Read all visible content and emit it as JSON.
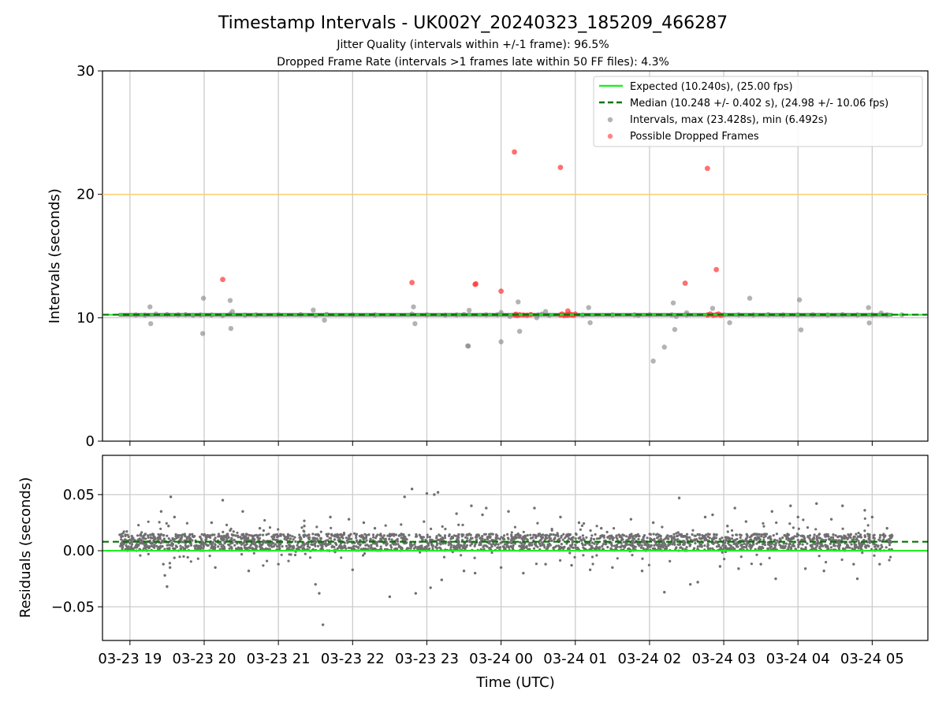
{
  "chart_data": [
    {
      "type": "scatter",
      "title": "Timestamp Intervals - UK002Y_20240323_185209_466287",
      "subtitle_1": "Jitter Quality (intervals within +/-1 frame): 96.5%",
      "subtitle_2": "Dropped Frame Rate (intervals >1 frames late within 50 FF files): 4.3%",
      "xlabel": "",
      "ylabel": "Intervals (seconds)",
      "ylim": [
        0,
        30
      ],
      "yticks": [
        0,
        10,
        20,
        30
      ],
      "xlim_hours": [
        18.63,
        29.75
      ],
      "xtick_hours": [
        19,
        20,
        21,
        22,
        23,
        24,
        25,
        26,
        27,
        28,
        29
      ],
      "grid": true,
      "legend_position": "top-right",
      "legend": [
        {
          "label": "Expected (10.240s), (25.00 fps)",
          "kind": "solid-line",
          "color": "#22ee22"
        },
        {
          "label": "Median (10.248 +/- 0.402 s), (24.98 +/- 10.06 fps)",
          "kind": "dashed-line",
          "color": "#007700"
        },
        {
          "label": "Intervals, max (23.428s), min (6.492s)",
          "kind": "marker",
          "color": "#808080"
        },
        {
          "label": "Possible Dropped Frames",
          "kind": "marker",
          "color": "#ff3333"
        }
      ],
      "expected_interval": 10.24,
      "median_interval": 10.248,
      "warning_line": 20.0,
      "series": [
        {
          "name": "Intervals",
          "x_hours": [
            19.08,
            19.2,
            19.35,
            19.5,
            19.65,
            19.75,
            19.85,
            19.95,
            20.1,
            20.25,
            20.35,
            20.55,
            20.7,
            21.0,
            21.3,
            21.5,
            21.65,
            22.0,
            22.3,
            22.8,
            23.0,
            23.25,
            23.4,
            23.5,
            23.8,
            23.95,
            24.2,
            24.5,
            24.55,
            24.85,
            24.95,
            25.1,
            25.5,
            25.8,
            26.0,
            26.3,
            26.5,
            26.8,
            27.0,
            27.2,
            27.4,
            27.6,
            27.8,
            28.0,
            28.2,
            28.4,
            28.6,
            28.8,
            29.0,
            29.2,
            29.4,
            19.27,
            19.28,
            20.35,
            20.36,
            20.38,
            19.99,
            19.98,
            21.47,
            21.62,
            22.82,
            22.84,
            23.56,
            23.55,
            23.57,
            24.0,
            24.0,
            24.23,
            24.25,
            24.6,
            24.65,
            25.18,
            25.2,
            26.32,
            26.34,
            26.36,
            26.5,
            26.85,
            27.08,
            27.35,
            28.02,
            28.04,
            28.95,
            28.96,
            29.12,
            24.48,
            26.2,
            26.05,
            25.85,
            24.12
          ],
          "y": [
            10.24,
            10.22,
            10.3,
            10.27,
            10.25,
            10.26,
            10.2,
            10.24,
            10.23,
            10.18,
            10.3,
            10.22,
            10.24,
            10.25,
            10.26,
            10.2,
            10.28,
            10.24,
            10.24,
            10.3,
            10.24,
            10.22,
            10.24,
            10.27,
            10.25,
            10.25,
            10.24,
            10.24,
            10.3,
            10.24,
            10.24,
            10.22,
            10.24,
            10.24,
            10.25,
            10.24,
            10.24,
            10.26,
            10.24,
            10.25,
            10.23,
            10.26,
            10.24,
            10.24,
            10.25,
            10.23,
            10.26,
            10.24,
            10.24,
            10.25,
            10.24,
            10.88,
            9.52,
            11.4,
            9.13,
            10.5,
            11.58,
            8.72,
            10.62,
            9.8,
            10.88,
            9.52,
            7.7,
            7.72,
            10.6,
            8.05,
            10.42,
            11.28,
            8.9,
            10.5,
            10.2,
            10.82,
            9.6,
            11.2,
            9.05,
            10.1,
            10.4,
            10.76,
            9.6,
            11.58,
            11.45,
            9.02,
            10.82,
            9.58,
            10.38,
            10.0,
            7.62,
            6.49,
            10.2,
            10.1
          ]
        },
        {
          "name": "Possible Dropped Frames",
          "x_hours": [
            20.25,
            22.8,
            23.65,
            23.66,
            24.0,
            24.18,
            24.2,
            24.22,
            24.25,
            24.3,
            24.35,
            24.4,
            24.8,
            24.82,
            24.85,
            24.88,
            24.9,
            24.92,
            24.95,
            24.98,
            25.0,
            24.9,
            26.48,
            26.78,
            26.82,
            26.86,
            26.9,
            26.93,
            26.96,
            26.9,
            24.18,
            24.8,
            26.78
          ],
          "y": [
            13.1,
            12.85,
            12.7,
            12.75,
            12.15,
            10.22,
            10.28,
            10.18,
            10.24,
            10.22,
            10.2,
            10.26,
            10.22,
            10.3,
            10.18,
            10.24,
            10.2,
            10.3,
            10.24,
            10.2,
            10.3,
            10.55,
            12.8,
            10.22,
            10.3,
            10.2,
            10.25,
            10.3,
            10.2,
            13.9,
            23.43,
            22.18,
            22.1
          ]
        }
      ]
    },
    {
      "type": "scatter",
      "xlabel": "Time (UTC)",
      "ylabel": "Residuals (seconds)",
      "ylim": [
        -0.08,
        0.085
      ],
      "yticks": [
        0.05,
        0.0,
        -0.05
      ],
      "ytick_labels": [
        "0.05",
        "0.00",
        "−0.05"
      ],
      "xlim_hours": [
        18.63,
        29.75
      ],
      "xtick_hours": [
        19,
        20,
        21,
        22,
        23,
        24,
        25,
        26,
        27,
        28,
        29
      ],
      "xtick_labels": [
        "03-23 19",
        "03-23 20",
        "03-23 21",
        "03-23 22",
        "03-23 23",
        "03-24 00",
        "03-24 01",
        "03-24 02",
        "03-24 03",
        "03-24 04",
        "03-24 05"
      ],
      "grid": true,
      "expected_residual": 0.0,
      "median_residual": 0.008,
      "data_range_hours": [
        18.85,
        29.27
      ],
      "typical_band": [
        0.0,
        0.015
      ],
      "outliers": {
        "x_hours": [
          19.45,
          19.47,
          19.42,
          19.5,
          19.55,
          19.6,
          20.1,
          20.15,
          20.35,
          20.52,
          20.6,
          20.75,
          21.0,
          21.35,
          21.5,
          21.55,
          21.6,
          21.7,
          21.95,
          22.0,
          22.15,
          22.3,
          22.5,
          22.8,
          22.85,
          23.0,
          23.05,
          23.1,
          23.2,
          23.4,
          23.5,
          23.6,
          23.65,
          23.75,
          23.8,
          24.0,
          24.1,
          24.3,
          24.45,
          24.6,
          24.8,
          24.95,
          25.05,
          25.2,
          25.35,
          25.5,
          25.75,
          25.9,
          26.05,
          26.2,
          26.4,
          26.55,
          26.65,
          26.75,
          26.85,
          26.95,
          27.05,
          27.15,
          27.2,
          27.3,
          27.5,
          27.65,
          27.7,
          27.9,
          28.0,
          28.1,
          28.25,
          28.35,
          28.45,
          28.6,
          28.75,
          28.8,
          28.9,
          29.0,
          29.1,
          29.2,
          19.52,
          19.54,
          23.15,
          22.7,
          20.25
        ],
        "y": [
          -0.012,
          -0.022,
          0.035,
          -0.032,
          0.048,
          0.03,
          0.025,
          -0.015,
          0.018,
          0.035,
          -0.018,
          0.02,
          -0.012,
          0.022,
          -0.03,
          -0.038,
          -0.066,
          0.03,
          0.028,
          -0.017,
          0.025,
          0.02,
          -0.041,
          0.055,
          -0.038,
          0.051,
          -0.033,
          0.05,
          -0.026,
          0.033,
          -0.018,
          0.04,
          -0.02,
          0.032,
          0.038,
          -0.015,
          0.035,
          -0.02,
          0.038,
          -0.012,
          0.03,
          -0.013,
          0.025,
          -0.017,
          0.02,
          -0.015,
          0.028,
          -0.018,
          0.025,
          -0.037,
          0.047,
          -0.03,
          -0.028,
          0.03,
          0.032,
          -0.014,
          0.022,
          0.038,
          -0.016,
          0.026,
          -0.012,
          0.035,
          -0.025,
          0.04,
          0.03,
          -0.016,
          0.042,
          -0.018,
          0.028,
          0.04,
          -0.012,
          -0.025,
          0.036,
          0.03,
          -0.012,
          0.02,
          0.022,
          -0.015,
          0.052,
          0.048,
          0.045
        ]
      }
    }
  ]
}
